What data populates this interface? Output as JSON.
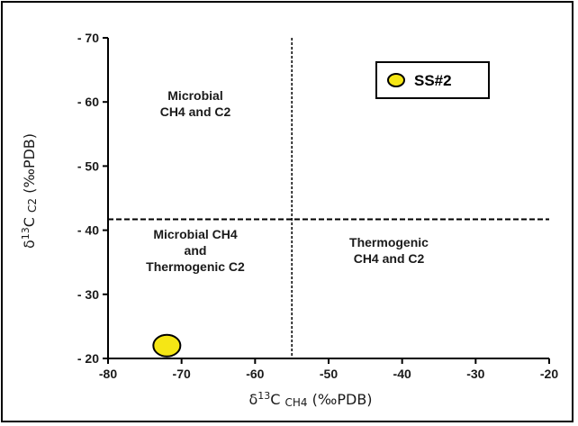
{
  "chart_data": {
    "type": "scatter",
    "x_axis": {
      "label_prefix": "δ",
      "label_sup": "13",
      "label_main": "C",
      "label_sub": "CH4",
      "label_unit": "(‰PDB)",
      "range": [
        -80,
        -20
      ],
      "ticks": [
        -80,
        -70,
        -60,
        -50,
        -40,
        -30,
        -20
      ],
      "tick_labels": [
        "-80",
        "-70",
        "-60",
        "-50",
        "-40",
        "-30",
        "-20"
      ]
    },
    "y_axis": {
      "label_prefix": "δ",
      "label_sup": "13",
      "label_main": "C",
      "label_sub": "C2",
      "label_unit": "(‰PDB)",
      "range": [
        -20,
        -70
      ],
      "ticks": [
        -70,
        -60,
        -50,
        -40,
        -30,
        -20
      ],
      "tick_labels": [
        "- 70",
        "- 60",
        "- 50",
        "- 40",
        "- 30",
        "- 20"
      ]
    },
    "grid": false,
    "boundaries": {
      "x_divider": -55,
      "y_divider": -41.7
    },
    "regions": [
      {
        "lines": [
          "Microbial",
          "CH4 and C2"
        ]
      },
      {
        "lines": [
          "Microbial CH4",
          "and",
          "Thermogenic C2"
        ]
      },
      {
        "lines": [
          "Thermogenic",
          "CH4 and C2"
        ]
      }
    ],
    "series": [
      {
        "name": "SS#2",
        "color": "#f5e615",
        "points": [
          {
            "x": -72,
            "y": -22
          }
        ]
      }
    ],
    "legend": {
      "placement": "top-right",
      "marker": "circle"
    }
  }
}
